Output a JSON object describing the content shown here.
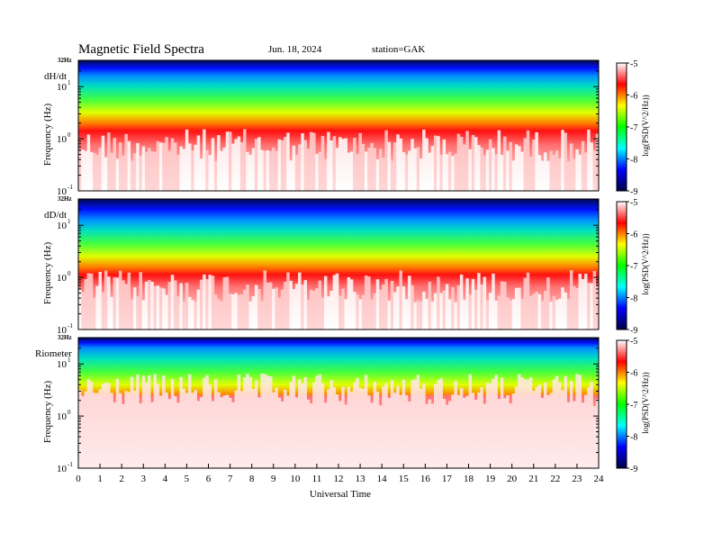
{
  "header": {
    "title": "Magnetic  Field  Spectra",
    "date": "Jun. 18, 2024",
    "station": "station=GAK"
  },
  "xlabel": "Universal Time",
  "colorbar_label": "log(PSD(V^2/Hz))",
  "chart_data": {
    "type": "heatmap",
    "x_range": [
      0,
      24
    ],
    "x_ticks": [
      0,
      1,
      2,
      3,
      4,
      5,
      6,
      7,
      8,
      9,
      10,
      11,
      12,
      13,
      14,
      15,
      16,
      17,
      18,
      19,
      20,
      21,
      22,
      23,
      24
    ],
    "y_scale": "log",
    "y_ticks": [
      {
        "base": "10",
        "exp": "1",
        "value": 10
      },
      {
        "base": "10",
        "exp": "0",
        "value": 1
      },
      {
        "base": "10",
        "exp": "-1",
        "value": 0.1
      }
    ],
    "y_top_label": "32Hz",
    "y_range": [
      0.1,
      32
    ],
    "ylabel": "Frequency  (Hz)",
    "color_scale": {
      "min": -9,
      "max": -5,
      "ticks": [
        "-5",
        "-6",
        "-7",
        "-8",
        "-9"
      ],
      "colormap": [
        "#ffffff",
        "#ff0000",
        "#ffff00",
        "#00ff00",
        "#00ffff",
        "#0000ff",
        "#000044"
      ]
    },
    "panels": [
      {
        "label": "dH/dt",
        "noise_top": 0.6,
        "blue_band": 0.12
      },
      {
        "label": "dD/dt",
        "noise_top": 0.62,
        "blue_band": 0.16
      },
      {
        "label": "Riometer",
        "noise_top": 0.35,
        "blue_band": 0.08
      }
    ]
  }
}
